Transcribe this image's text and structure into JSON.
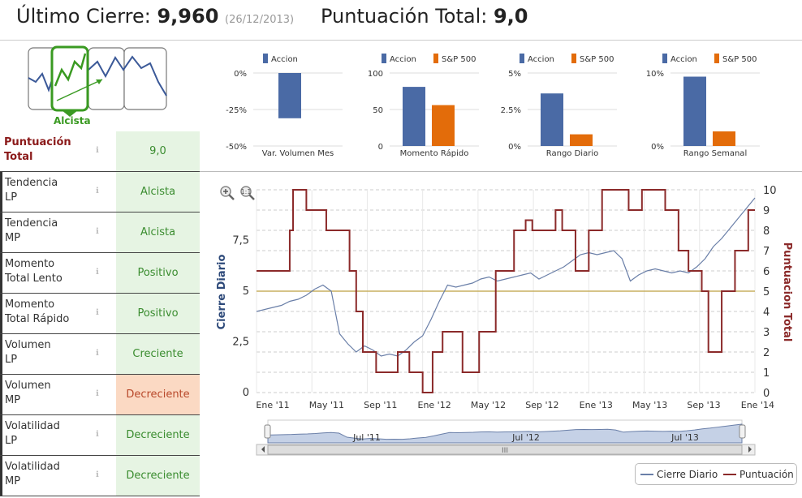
{
  "header": {
    "close_label": "Último Cierre:",
    "close_value": "9,960",
    "close_date": "(26/12/2013)",
    "score_label": "Puntuación Total:",
    "score_value": "9,0"
  },
  "trend": {
    "label": "Alcista",
    "color": "#3a9a22"
  },
  "score_rows": [
    {
      "label_1": "Puntuación",
      "label_2": "Total",
      "value": "9,0",
      "status": "good",
      "emphasis": true
    },
    {
      "label_1": "Tendencia",
      "label_2": "LP",
      "value": "Alcista",
      "status": "good"
    },
    {
      "label_1": "Tendencia",
      "label_2": "MP",
      "value": "Alcista",
      "status": "good"
    },
    {
      "label_1": "Momento",
      "label_2": "Total Lento",
      "value": "Positivo",
      "status": "good"
    },
    {
      "label_1": "Momento",
      "label_2": "Total Rápido",
      "value": "Positivo",
      "status": "good"
    },
    {
      "label_1": "Volumen",
      "label_2": "LP",
      "value": "Creciente",
      "status": "good"
    },
    {
      "label_1": "Volumen",
      "label_2": "MP",
      "value": "Decreciente",
      "status": "warn"
    },
    {
      "label_1": "Volatilidad",
      "label_2": "LP",
      "value": "Decreciente",
      "status": "good"
    },
    {
      "label_1": "Volatilidad",
      "label_2": "MP",
      "value": "Decreciente",
      "status": "good"
    }
  ],
  "info_icon": "ℹ",
  "chart_data": [
    {
      "type": "bar",
      "categories": [
        "Var. Volumen Mes"
      ],
      "series": [
        {
          "name": "Accion",
          "values": [
            -31
          ]
        }
      ],
      "ylim": [
        -50,
        0
      ],
      "yticks": [
        "0%",
        "-25%",
        "-50%"
      ],
      "xlabel": "Var. Volumen Mes",
      "colors": [
        "#4a6aa5"
      ]
    },
    {
      "type": "bar",
      "categories": [
        "Momento Rápido"
      ],
      "series": [
        {
          "name": "Accion",
          "values": [
            81
          ]
        },
        {
          "name": "S&P 500",
          "values": [
            56
          ]
        }
      ],
      "ylim": [
        0,
        100
      ],
      "yticks": [
        "100",
        "50",
        "0"
      ],
      "xlabel": "Momento Rápido",
      "colors": [
        "#4a6aa5",
        "#e36c0a"
      ]
    },
    {
      "type": "bar",
      "categories": [
        "Rango Diario"
      ],
      "series": [
        {
          "name": "Accion",
          "values": [
            3.6
          ]
        },
        {
          "name": "S&P 500",
          "values": [
            0.8
          ]
        }
      ],
      "ylim": [
        0,
        5
      ],
      "yticks": [
        "5%",
        "2.5%",
        "0%"
      ],
      "xlabel": "Rango Diario",
      "colors": [
        "#4a6aa5",
        "#e36c0a"
      ]
    },
    {
      "type": "bar",
      "categories": [
        "Rango Semanal"
      ],
      "series": [
        {
          "name": "Accion",
          "values": [
            9.5
          ]
        },
        {
          "name": "S&P 500",
          "values": [
            2
          ]
        }
      ],
      "ylim": [
        0,
        10
      ],
      "yticks": [
        "10%",
        "0%"
      ],
      "xlabel": "Rango Semanal",
      "colors": [
        "#4a6aa5",
        "#e36c0a"
      ]
    },
    {
      "type": "line",
      "ylabel": "Cierre Diario",
      "y2label": "Puntuacion Total",
      "ylim": [
        0,
        10
      ],
      "y2lim": [
        0,
        10
      ],
      "yticks": [
        "0",
        "2,5",
        "5",
        "7,5"
      ],
      "y2ticks": [
        "0",
        "1",
        "2",
        "3",
        "4",
        "5",
        "6",
        "7",
        "8",
        "9",
        "10"
      ],
      "xticks": [
        "Ene '11",
        "May '11",
        "Sep '11",
        "Ene '12",
        "May '12",
        "Sep '12",
        "Ene '13",
        "May '13",
        "Sep '13",
        "Ene '14"
      ],
      "reference_line": 5,
      "series": [
        {
          "name": "Cierre Diario",
          "color": "#6a7fa8",
          "x": [
            0,
            0.05,
            0.1,
            0.15,
            0.2,
            0.25,
            0.3,
            0.35,
            0.4,
            0.45,
            0.5,
            0.55,
            0.6,
            0.65,
            0.7,
            0.75,
            0.8,
            0.85,
            0.9,
            0.95,
            1.0,
            1.05,
            1.1,
            1.15,
            1.2,
            1.25,
            1.3,
            1.35,
            1.4,
            1.45,
            1.5,
            1.55,
            1.6,
            1.65,
            1.7,
            1.75,
            1.8,
            1.85,
            1.9,
            1.95,
            2.0,
            2.05,
            2.1,
            2.15,
            2.2,
            2.25,
            2.3,
            2.35,
            2.4,
            2.45,
            2.5,
            2.55,
            2.6,
            2.65,
            2.7,
            2.75,
            2.8,
            2.85,
            2.9,
            2.95,
            3.0
          ],
          "y": [
            4.0,
            4.1,
            4.2,
            4.3,
            4.5,
            4.6,
            4.8,
            5.1,
            5.3,
            5.0,
            2.9,
            2.4,
            2.0,
            2.3,
            2.1,
            1.8,
            1.9,
            1.8,
            2.1,
            2.5,
            2.8,
            3.6,
            4.5,
            5.3,
            5.2,
            5.3,
            5.4,
            5.6,
            5.7,
            5.5,
            5.6,
            5.7,
            5.8,
            5.9,
            5.6,
            5.8,
            6.0,
            6.2,
            6.5,
            6.8,
            6.9,
            6.8,
            6.9,
            7.0,
            6.6,
            5.5,
            5.8,
            6.0,
            6.1,
            6.0,
            5.9,
            6.0,
            5.9,
            6.2,
            6.6,
            7.2,
            7.6,
            8.1,
            8.6,
            9.1,
            9.6
          ]
        },
        {
          "name": "Puntuación",
          "color": "#8b2a2a",
          "x": [
            0,
            0.2,
            0.2,
            0.22,
            0.22,
            0.3,
            0.3,
            0.42,
            0.42,
            0.56,
            0.56,
            0.6,
            0.6,
            0.64,
            0.64,
            0.72,
            0.72,
            0.85,
            0.85,
            0.92,
            0.92,
            1.0,
            1.0,
            1.06,
            1.06,
            1.12,
            1.12,
            1.24,
            1.24,
            1.34,
            1.34,
            1.44,
            1.44,
            1.55,
            1.55,
            1.62,
            1.62,
            1.66,
            1.66,
            1.8,
            1.8,
            1.84,
            1.84,
            1.92,
            1.92,
            2.0,
            2.0,
            2.08,
            2.08,
            2.24,
            2.24,
            2.32,
            2.32,
            2.46,
            2.46,
            2.54,
            2.54,
            2.6,
            2.6,
            2.68,
            2.68,
            2.72,
            2.72,
            2.8,
            2.8,
            2.88,
            2.88,
            2.96,
            2.96,
            3.0
          ],
          "y": [
            6,
            6,
            8,
            8,
            10,
            10,
            9,
            9,
            8,
            8,
            6,
            6,
            4,
            4,
            2,
            2,
            1,
            1,
            2,
            2,
            1,
            1,
            0,
            0,
            2,
            2,
            3,
            3,
            1,
            1,
            3,
            3,
            6,
            6,
            8,
            8,
            8.5,
            8.5,
            8,
            8,
            9,
            9,
            8,
            8,
            6,
            6,
            8,
            8,
            10,
            10,
            9,
            9,
            10,
            10,
            9,
            9,
            7,
            7,
            6,
            6,
            5,
            5,
            2,
            2,
            5,
            5,
            7,
            7,
            9,
            9
          ]
        }
      ]
    }
  ],
  "navigator": {
    "labels": [
      "Jul '11",
      "Jul '12",
      "Jul '13"
    ],
    "scroll_label": "III"
  },
  "legend": {
    "items": [
      "Cierre Diario",
      "Puntuación"
    ]
  },
  "zoom": {
    "zoom_in": "zoom-in-icon",
    "zoom_reset": "zoom-reset-icon"
  }
}
